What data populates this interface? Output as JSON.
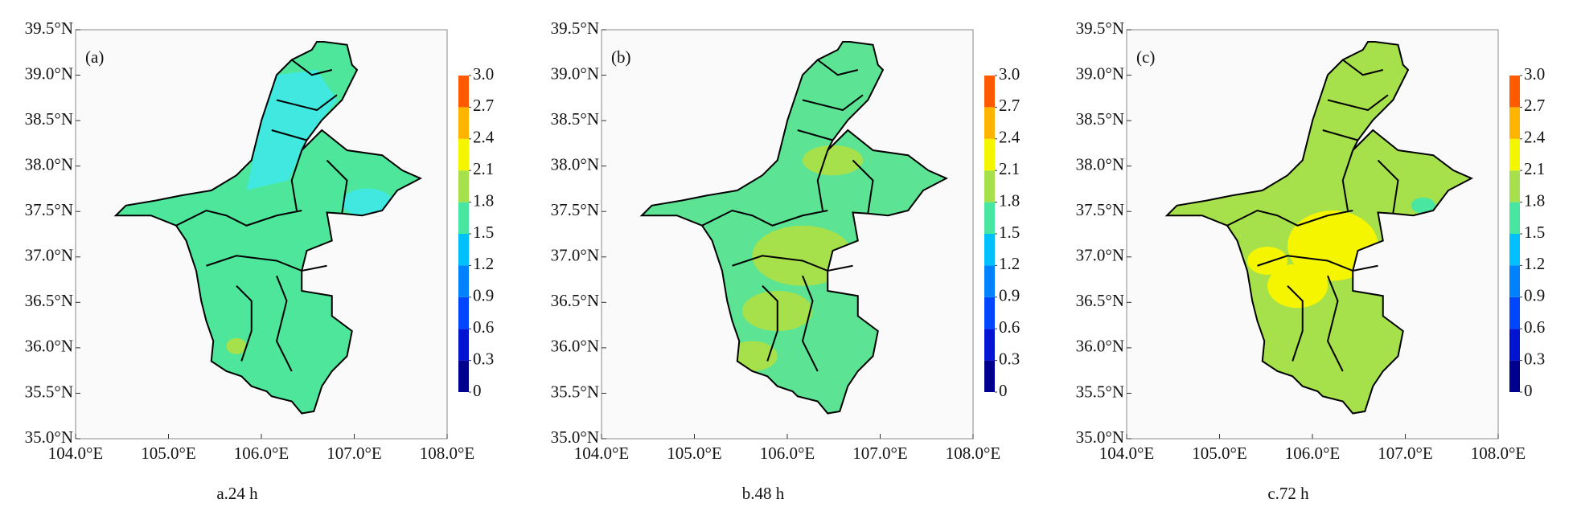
{
  "chart_data": {
    "type": "map",
    "xlim": [
      104,
      108
    ],
    "ylim": [
      35,
      39.5
    ],
    "xticks": [
      {
        "value": 104,
        "label": "104.0°E"
      },
      {
        "value": 105,
        "label": "105.0°E"
      },
      {
        "value": 106,
        "label": "106.0°E"
      },
      {
        "value": 107,
        "label": "107.0°E"
      },
      {
        "value": 108,
        "label": "108.0°E"
      }
    ],
    "yticks": [
      {
        "value": 35,
        "label": "35.0°N"
      },
      {
        "value": 35.5,
        "label": "35.5°N"
      },
      {
        "value": 36,
        "label": "36.0°N"
      },
      {
        "value": 36.5,
        "label": "36.5°N"
      },
      {
        "value": 37,
        "label": "37.0°N"
      },
      {
        "value": 37.5,
        "label": "37.5°N"
      },
      {
        "value": 38,
        "label": "38.0°N"
      },
      {
        "value": 38.5,
        "label": "38.5°N"
      },
      {
        "value": 39,
        "label": "39.0°N"
      },
      {
        "value": 39.5,
        "label": "39.5°N"
      }
    ],
    "colorbar": {
      "levels": [
        0,
        0.3,
        0.6,
        0.9,
        1.2,
        1.5,
        1.8,
        2.1,
        2.4,
        2.7,
        {
          "value": 3,
          "label": "3.0"
        }
      ],
      "colors": [
        "#00008f",
        "#0014d2",
        "#0046ff",
        "#0082ff",
        "#00c0ff",
        "#48e6a0",
        "#a6e04a",
        "#f5f500",
        "#ffb400",
        "#ff5a00"
      ]
    },
    "panels": [
      {
        "label": "(a)",
        "caption": "a.24 h",
        "fill": "#4de69a"
      },
      {
        "label": "(b)",
        "caption": "b.48 h",
        "fill": "#5ce494"
      },
      {
        "label": "(c)",
        "caption": "c.72 h",
        "fill": "#a6e04a"
      }
    ]
  }
}
